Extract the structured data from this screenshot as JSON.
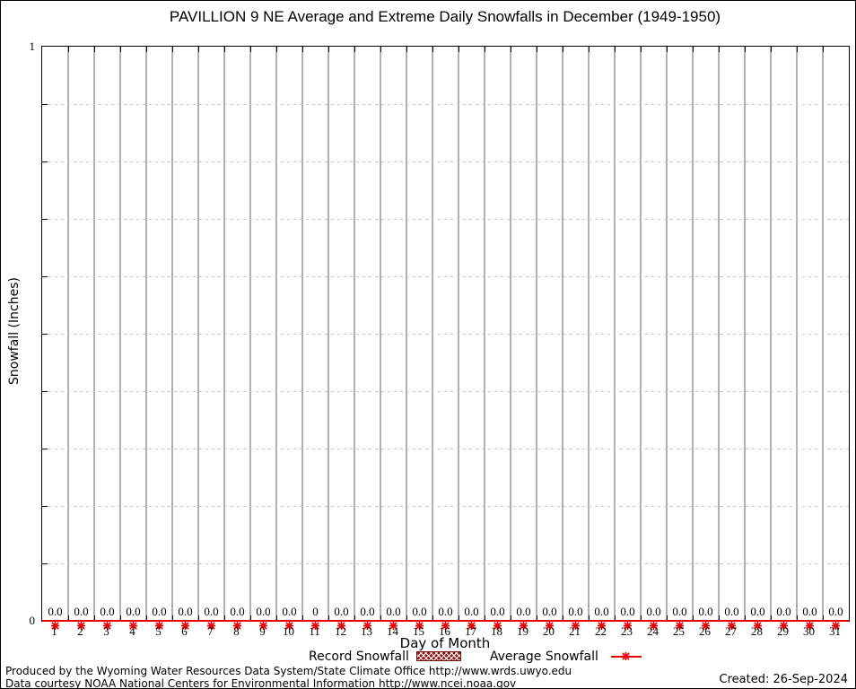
{
  "title": "PAVILLION 9 NE Average and Extreme Daily Snowfalls in December (1949-1950)",
  "chart_data": {
    "type": "line",
    "title": "PAVILLION 9 NE Average and Extreme Daily Snowfalls in December (1949-1950)",
    "xlabel": "Day of Month",
    "ylabel": "Snowfall (Inches)",
    "ylim": [
      0,
      1
    ],
    "y_axis_ticks": [
      "0",
      "1"
    ],
    "grid": {
      "vertical": "solid gray at day-cell boundaries",
      "horizontal": "dashed light gray every 0.1",
      "legend_position": "below x-axis"
    },
    "x_ticks": [
      "1",
      "2",
      "3",
      "4",
      "5",
      "6",
      "7",
      "8",
      "9",
      "10",
      "11",
      "12",
      "13",
      "14",
      "15",
      "16",
      "17",
      "18",
      "19",
      "20",
      "21",
      "22",
      "23",
      "24",
      "25",
      "26",
      "27",
      "28",
      "29",
      "30",
      "31"
    ],
    "point_labels": [
      "0.0",
      "0.0",
      "0.0",
      "0.0",
      "0.0",
      "0.0",
      "0.0",
      "0.0",
      "0.0",
      "0.0",
      "0",
      "0.0",
      "0.0",
      "0.0",
      "0.0",
      "0.0",
      "0.0",
      "0.0",
      "0.0",
      "0.0",
      "0.0",
      "0.0",
      "0.0",
      "0.0",
      "0.0",
      "0.0",
      "0.0",
      "0.0",
      "0.0",
      "0.0",
      "0.0"
    ],
    "series": [
      {
        "name": "Record Snowfall",
        "type": "boxes",
        "color": "#8b0f0f",
        "values": [
          0,
          0,
          0,
          0,
          0,
          0,
          0,
          0,
          0,
          0,
          0,
          0,
          0,
          0,
          0,
          0,
          0,
          0,
          0,
          0,
          0,
          0,
          0,
          0,
          0,
          0,
          0,
          0,
          0,
          0,
          0
        ]
      },
      {
        "name": "Average Snowfall",
        "type": "line+points",
        "color": "#e60000",
        "values": [
          0,
          0,
          0,
          0,
          0,
          0,
          0,
          0,
          0,
          0,
          0,
          0,
          0,
          0,
          0,
          0,
          0,
          0,
          0,
          0,
          0,
          0,
          0,
          0,
          0,
          0,
          0,
          0,
          0,
          0,
          0
        ]
      }
    ]
  },
  "legend": {
    "record_label": "Record Snowfall",
    "average_label": "Average Snowfall"
  },
  "colors": {
    "average_line": "#e60000",
    "record_swatch": "#8b0f0f",
    "grid_vertical": "#b0b0b0",
    "grid_horizontal_dashed": "#c9c9c9"
  },
  "footer": {
    "line1": "Produced by the Wyoming Water Resources Data System/State Climate Office http://www.wrds.uwyo.edu",
    "line2": "Data courtesy NOAA National Centers for Environmental Information http://www.ncei.noaa.gov",
    "created": "Created: 26-Sep-2024"
  }
}
